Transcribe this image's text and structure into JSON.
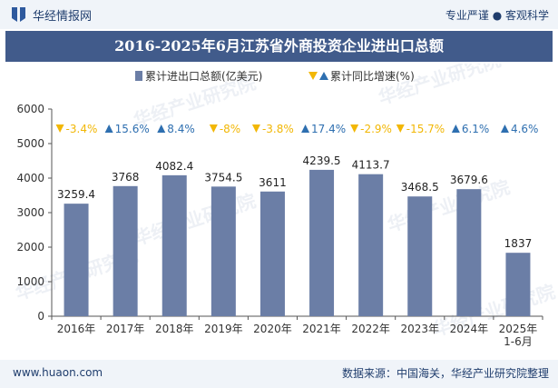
{
  "header": {
    "brand": "华经情报网",
    "tags": "专业严谨 ● 客观科学"
  },
  "footer": {
    "site": "www.huaon.com",
    "source": "数据来源：中国海关，华经产业研究院整理"
  },
  "watermark": "华经产业研究院",
  "chart_data": {
    "type": "bar",
    "title": "2016-2025年6月江苏省外商投资企业进出口总额",
    "categories": [
      "2016年",
      "2017年",
      "2018年",
      "2019年",
      "2020年",
      "2021年",
      "2022年",
      "2023年",
      "2024年",
      "2025年\n1-6月"
    ],
    "series": [
      {
        "name": "累计进出口总额(亿美元)",
        "values": [
          3259.4,
          3768,
          4082.4,
          3754.5,
          3611,
          4239.5,
          4113.7,
          3468.5,
          3679.6,
          1837
        ],
        "value_labels": [
          "3259.4",
          "3768",
          "4082.4",
          "3754.5",
          "3611",
          "4239.5",
          "4113.7",
          "3468.5",
          "3679.6",
          "1837"
        ]
      },
      {
        "name": "累计同比增速(%)",
        "values": [
          -3.4,
          15.6,
          8.4,
          -8,
          -3.8,
          17.4,
          -2.9,
          -15.7,
          6.1,
          4.6
        ],
        "value_labels": [
          "-3.4%",
          "15.6%",
          "8.4%",
          "-8%",
          "-3.8%",
          "17.4%",
          "-2.9%",
          "-15.7%",
          "6.1%",
          "4.6%"
        ]
      }
    ],
    "ylim": [
      0,
      6000
    ],
    "yticks": [
      0,
      1000,
      2000,
      3000,
      4000,
      5000,
      6000
    ],
    "grid": false,
    "legend_position": "top-center",
    "colors": {
      "bar": "#6b7ea6",
      "up": "#2e6fb0",
      "down": "#f2b705"
    }
  }
}
